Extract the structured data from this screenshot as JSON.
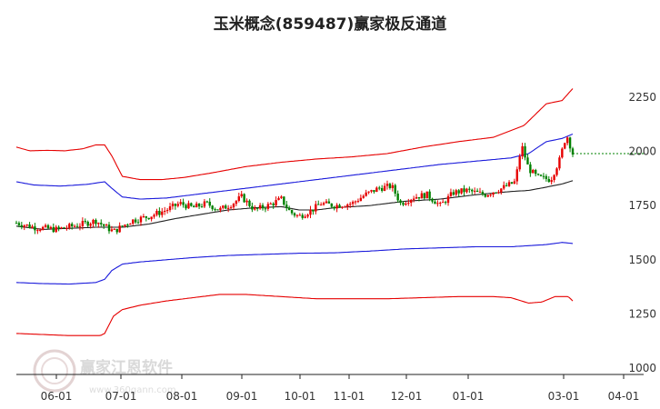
{
  "chart_data": {
    "type": "candlestick",
    "title": "玉米概念(859487)赢家极反通道",
    "x_ticks": [
      "06-01",
      "07-01",
      "08-01",
      "09-01",
      "10-01",
      "11-01",
      "12-01",
      "01-01",
      "03-01",
      "04-01"
    ],
    "y_ticks": [
      1000,
      1250,
      1500,
      1750,
      2000,
      2250
    ],
    "ylim": [
      1000,
      2320
    ],
    "last_price": 1990,
    "colors": {
      "up": "#e60000",
      "down": "#008000",
      "ma": "#222222",
      "inner_band": "#1a1adb",
      "outer_band": "#e60000",
      "price_line": "#008000"
    },
    "series": [
      {
        "key": "outer_upper",
        "points": [
          [
            0,
            2020
          ],
          [
            15,
            2003
          ],
          [
            35,
            2005
          ],
          [
            55,
            2003
          ],
          [
            75,
            2012
          ],
          [
            90,
            2030
          ],
          [
            100,
            2030
          ],
          [
            108,
            1980
          ],
          [
            120,
            1885
          ],
          [
            140,
            1870
          ],
          [
            165,
            1870
          ],
          [
            190,
            1880
          ],
          [
            220,
            1900
          ],
          [
            260,
            1930
          ],
          [
            300,
            1950
          ],
          [
            340,
            1965
          ],
          [
            380,
            1975
          ],
          [
            420,
            1990
          ],
          [
            460,
            2020
          ],
          [
            500,
            2045
          ],
          [
            540,
            2065
          ],
          [
            575,
            2120
          ],
          [
            600,
            2220
          ],
          [
            618,
            2235
          ],
          [
            630,
            2290
          ]
        ]
      },
      {
        "key": "inner_upper",
        "points": [
          [
            0,
            1860
          ],
          [
            20,
            1845
          ],
          [
            50,
            1840
          ],
          [
            80,
            1848
          ],
          [
            100,
            1860
          ],
          [
            108,
            1830
          ],
          [
            120,
            1790
          ],
          [
            140,
            1780
          ],
          [
            170,
            1785
          ],
          [
            200,
            1800
          ],
          [
            240,
            1820
          ],
          [
            280,
            1840
          ],
          [
            320,
            1860
          ],
          [
            360,
            1880
          ],
          [
            400,
            1900
          ],
          [
            440,
            1920
          ],
          [
            480,
            1940
          ],
          [
            520,
            1955
          ],
          [
            560,
            1970
          ],
          [
            580,
            1990
          ],
          [
            600,
            2045
          ],
          [
            618,
            2060
          ],
          [
            630,
            2080
          ]
        ]
      },
      {
        "key": "moving_average",
        "points": [
          [
            0,
            1655
          ],
          [
            30,
            1640
          ],
          [
            60,
            1645
          ],
          [
            90,
            1650
          ],
          [
            120,
            1650
          ],
          [
            150,
            1665
          ],
          [
            180,
            1690
          ],
          [
            210,
            1710
          ],
          [
            240,
            1730
          ],
          [
            270,
            1740
          ],
          [
            300,
            1745
          ],
          [
            320,
            1730
          ],
          [
            340,
            1730
          ],
          [
            360,
            1740
          ],
          [
            400,
            1750
          ],
          [
            440,
            1770
          ],
          [
            480,
            1780
          ],
          [
            520,
            1800
          ],
          [
            560,
            1815
          ],
          [
            580,
            1820
          ],
          [
            600,
            1835
          ],
          [
            618,
            1850
          ],
          [
            630,
            1865
          ]
        ]
      },
      {
        "key": "inner_lower",
        "points": [
          [
            0,
            1395
          ],
          [
            30,
            1390
          ],
          [
            60,
            1388
          ],
          [
            90,
            1395
          ],
          [
            100,
            1410
          ],
          [
            108,
            1450
          ],
          [
            120,
            1480
          ],
          [
            140,
            1490
          ],
          [
            170,
            1500
          ],
          [
            200,
            1510
          ],
          [
            240,
            1520
          ],
          [
            280,
            1525
          ],
          [
            320,
            1530
          ],
          [
            360,
            1532
          ],
          [
            400,
            1540
          ],
          [
            440,
            1550
          ],
          [
            480,
            1555
          ],
          [
            520,
            1560
          ],
          [
            560,
            1560
          ],
          [
            600,
            1570
          ],
          [
            618,
            1580
          ],
          [
            630,
            1575
          ]
        ]
      },
      {
        "key": "outer_lower",
        "points": [
          [
            0,
            1160
          ],
          [
            30,
            1155
          ],
          [
            60,
            1150
          ],
          [
            80,
            1150
          ],
          [
            95,
            1150
          ],
          [
            100,
            1160
          ],
          [
            110,
            1240
          ],
          [
            120,
            1270
          ],
          [
            140,
            1290
          ],
          [
            170,
            1310
          ],
          [
            200,
            1325
          ],
          [
            230,
            1340
          ],
          [
            260,
            1340
          ],
          [
            300,
            1330
          ],
          [
            340,
            1320
          ],
          [
            380,
            1320
          ],
          [
            420,
            1320
          ],
          [
            460,
            1325
          ],
          [
            500,
            1330
          ],
          [
            540,
            1330
          ],
          [
            560,
            1325
          ],
          [
            580,
            1300
          ],
          [
            595,
            1305
          ],
          [
            610,
            1330
          ],
          [
            625,
            1330
          ],
          [
            630,
            1310
          ]
        ]
      }
    ],
    "price_anchors": [
      [
        0,
        1670
      ],
      [
        20,
        1650
      ],
      [
        45,
        1640
      ],
      [
        70,
        1660
      ],
      [
        90,
        1680
      ],
      [
        110,
        1630
      ],
      [
        130,
        1680
      ],
      [
        150,
        1700
      ],
      [
        170,
        1730
      ],
      [
        185,
        1760
      ],
      [
        200,
        1740
      ],
      [
        215,
        1760
      ],
      [
        230,
        1730
      ],
      [
        245,
        1760
      ],
      [
        255,
        1790
      ],
      [
        270,
        1730
      ],
      [
        285,
        1750
      ],
      [
        300,
        1780
      ],
      [
        310,
        1720
      ],
      [
        320,
        1700
      ],
      [
        335,
        1730
      ],
      [
        345,
        1760
      ],
      [
        360,
        1750
      ],
      [
        380,
        1760
      ],
      [
        395,
        1800
      ],
      [
        410,
        1830
      ],
      [
        425,
        1840
      ],
      [
        435,
        1760
      ],
      [
        450,
        1790
      ],
      [
        465,
        1800
      ],
      [
        480,
        1750
      ],
      [
        495,
        1810
      ],
      [
        510,
        1820
      ],
      [
        530,
        1800
      ],
      [
        550,
        1830
      ],
      [
        565,
        1860
      ],
      [
        572,
        2030
      ],
      [
        580,
        1920
      ],
      [
        590,
        1880
      ],
      [
        605,
        1870
      ],
      [
        615,
        1960
      ],
      [
        623,
        2080
      ],
      [
        630,
        1990
      ]
    ]
  }
}
